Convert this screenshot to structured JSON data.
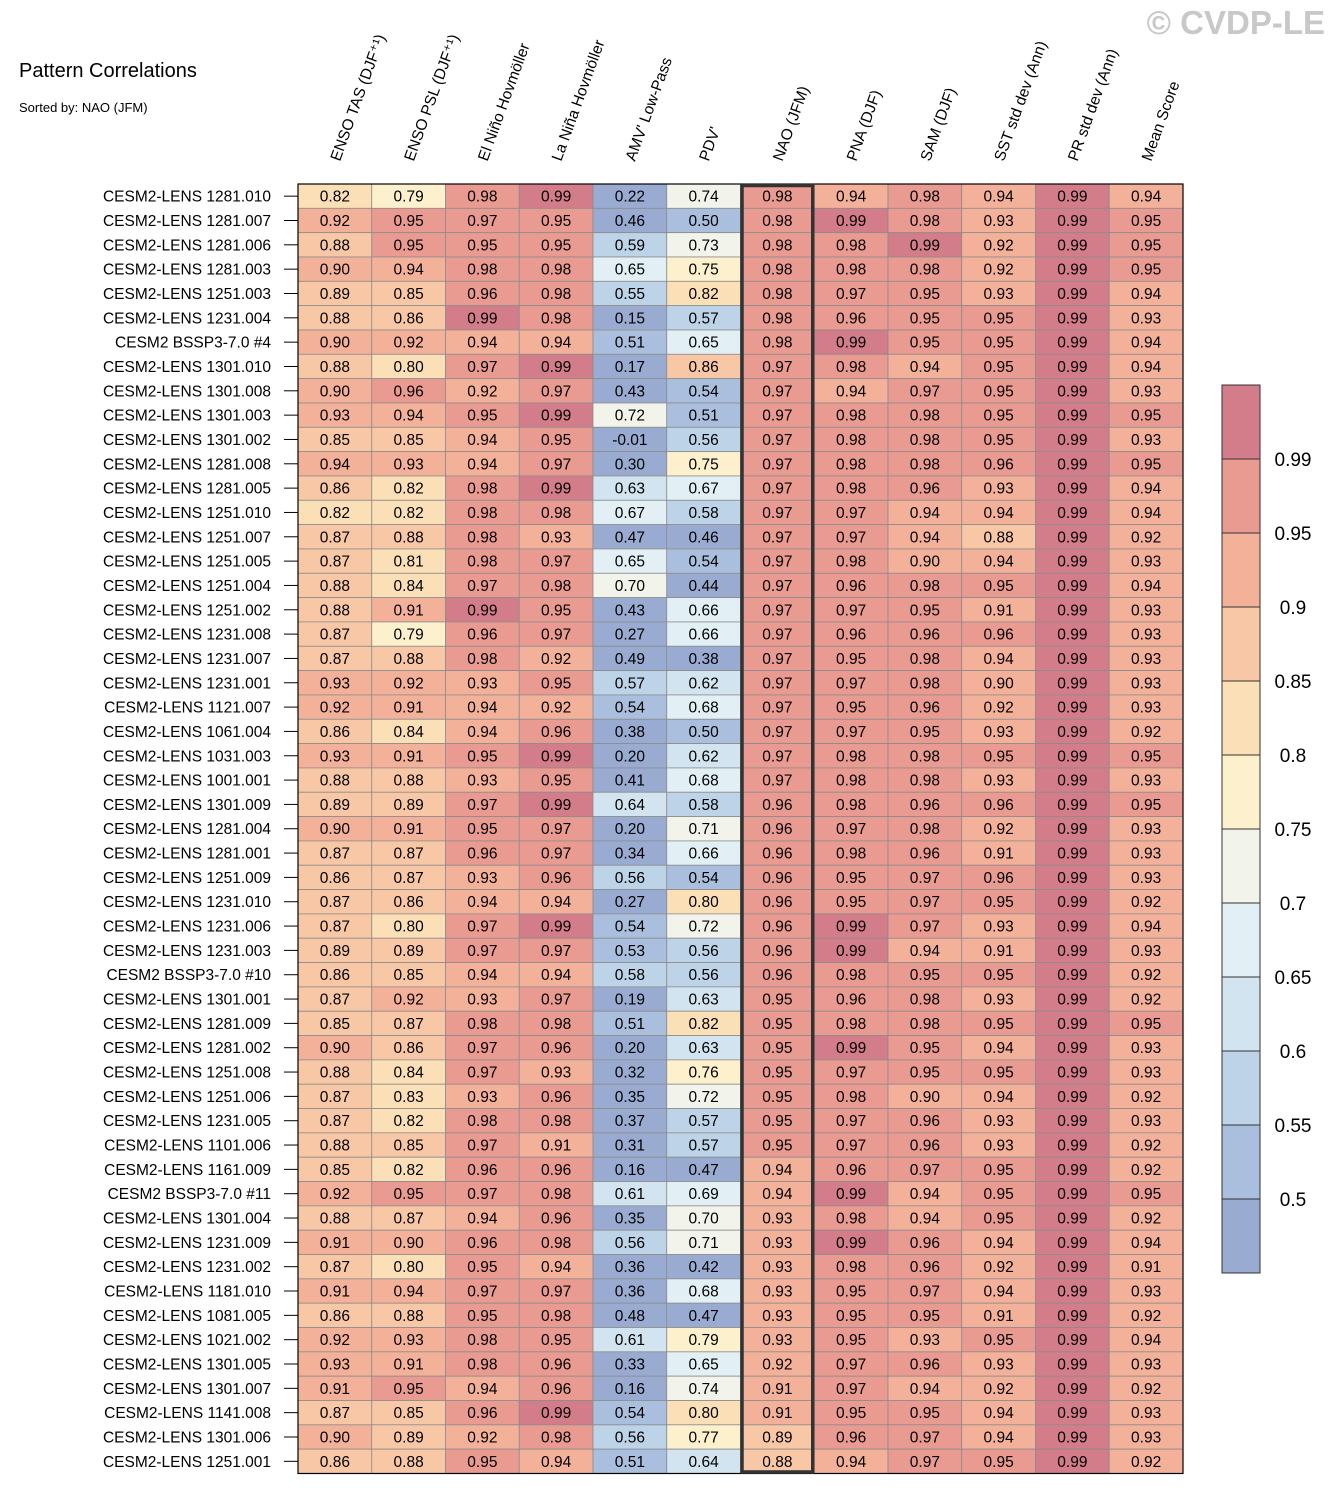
{
  "watermark": "© CVDP-LE",
  "chart_data": {
    "type": "heatmap",
    "title": "Pattern Correlations",
    "subtitle": "Sorted by: NAO (JFM)",
    "highlight_column": "NAO (JFM)",
    "columns": [
      "ENSO TAS (DJF⁺¹)",
      "ENSO PSL (DJF⁺¹)",
      "El Niño Hovmöller",
      "La Niña Hovmöller",
      "AMV' Low-Pass",
      "PDV'",
      "NAO (JFM)",
      "PNA (DJF)",
      "SAM (DJF)",
      "SST std dev (Ann)",
      "PR std dev (Ann)",
      "Mean Score"
    ],
    "rows": [
      {
        "label": "CESM2-LENS 1281.010",
        "values": [
          "0.82",
          "0.79",
          "0.98",
          "0.99",
          "0.22",
          "0.74",
          "0.98",
          "0.94",
          "0.98",
          "0.94",
          "0.99",
          "0.94"
        ]
      },
      {
        "label": "CESM2-LENS 1281.007",
        "values": [
          "0.92",
          "0.95",
          "0.97",
          "0.95",
          "0.46",
          "0.50",
          "0.98",
          "0.99",
          "0.98",
          "0.93",
          "0.99",
          "0.95"
        ]
      },
      {
        "label": "CESM2-LENS 1281.006",
        "values": [
          "0.88",
          "0.95",
          "0.95",
          "0.95",
          "0.59",
          "0.73",
          "0.98",
          "0.98",
          "0.99",
          "0.92",
          "0.99",
          "0.95"
        ]
      },
      {
        "label": "CESM2-LENS 1281.003",
        "values": [
          "0.90",
          "0.94",
          "0.98",
          "0.98",
          "0.65",
          "0.75",
          "0.98",
          "0.98",
          "0.98",
          "0.92",
          "0.99",
          "0.95"
        ]
      },
      {
        "label": "CESM2-LENS 1251.003",
        "values": [
          "0.89",
          "0.85",
          "0.96",
          "0.98",
          "0.55",
          "0.82",
          "0.98",
          "0.97",
          "0.95",
          "0.93",
          "0.99",
          "0.94"
        ]
      },
      {
        "label": "CESM2-LENS 1231.004",
        "values": [
          "0.88",
          "0.86",
          "0.99",
          "0.98",
          "0.15",
          "0.57",
          "0.98",
          "0.96",
          "0.95",
          "0.95",
          "0.99",
          "0.93"
        ]
      },
      {
        "label": "CESM2 BSSP3-7.0 #4",
        "values": [
          "0.90",
          "0.92",
          "0.94",
          "0.94",
          "0.51",
          "0.65",
          "0.98",
          "0.99",
          "0.95",
          "0.95",
          "0.99",
          "0.94"
        ]
      },
      {
        "label": "CESM2-LENS 1301.010",
        "values": [
          "0.88",
          "0.80",
          "0.97",
          "0.99",
          "0.17",
          "0.86",
          "0.97",
          "0.98",
          "0.94",
          "0.95",
          "0.99",
          "0.94"
        ]
      },
      {
        "label": "CESM2-LENS 1301.008",
        "values": [
          "0.90",
          "0.96",
          "0.92",
          "0.97",
          "0.43",
          "0.54",
          "0.97",
          "0.94",
          "0.97",
          "0.95",
          "0.99",
          "0.93"
        ]
      },
      {
        "label": "CESM2-LENS 1301.003",
        "values": [
          "0.93",
          "0.94",
          "0.95",
          "0.99",
          "0.72",
          "0.51",
          "0.97",
          "0.98",
          "0.98",
          "0.95",
          "0.99",
          "0.95"
        ]
      },
      {
        "label": "CESM2-LENS 1301.002",
        "values": [
          "0.85",
          "0.85",
          "0.94",
          "0.95",
          "-0.01",
          "0.56",
          "0.97",
          "0.98",
          "0.98",
          "0.95",
          "0.99",
          "0.93"
        ]
      },
      {
        "label": "CESM2-LENS 1281.008",
        "values": [
          "0.94",
          "0.93",
          "0.94",
          "0.97",
          "0.30",
          "0.75",
          "0.97",
          "0.98",
          "0.98",
          "0.96",
          "0.99",
          "0.95"
        ]
      },
      {
        "label": "CESM2-LENS 1281.005",
        "values": [
          "0.86",
          "0.82",
          "0.98",
          "0.99",
          "0.63",
          "0.67",
          "0.97",
          "0.98",
          "0.96",
          "0.93",
          "0.99",
          "0.94"
        ]
      },
      {
        "label": "CESM2-LENS 1251.010",
        "values": [
          "0.82",
          "0.82",
          "0.98",
          "0.98",
          "0.67",
          "0.58",
          "0.97",
          "0.97",
          "0.94",
          "0.94",
          "0.99",
          "0.94"
        ]
      },
      {
        "label": "CESM2-LENS 1251.007",
        "values": [
          "0.87",
          "0.88",
          "0.98",
          "0.93",
          "0.47",
          "0.46",
          "0.97",
          "0.97",
          "0.94",
          "0.88",
          "0.99",
          "0.92"
        ]
      },
      {
        "label": "CESM2-LENS 1251.005",
        "values": [
          "0.87",
          "0.81",
          "0.98",
          "0.97",
          "0.65",
          "0.54",
          "0.97",
          "0.98",
          "0.90",
          "0.94",
          "0.99",
          "0.93"
        ]
      },
      {
        "label": "CESM2-LENS 1251.004",
        "values": [
          "0.88",
          "0.84",
          "0.97",
          "0.98",
          "0.70",
          "0.44",
          "0.97",
          "0.96",
          "0.98",
          "0.95",
          "0.99",
          "0.94"
        ]
      },
      {
        "label": "CESM2-LENS 1251.002",
        "values": [
          "0.88",
          "0.91",
          "0.99",
          "0.95",
          "0.43",
          "0.66",
          "0.97",
          "0.97",
          "0.95",
          "0.91",
          "0.99",
          "0.93"
        ]
      },
      {
        "label": "CESM2-LENS 1231.008",
        "values": [
          "0.87",
          "0.79",
          "0.96",
          "0.97",
          "0.27",
          "0.66",
          "0.97",
          "0.96",
          "0.96",
          "0.96",
          "0.99",
          "0.93"
        ]
      },
      {
        "label": "CESM2-LENS 1231.007",
        "values": [
          "0.87",
          "0.88",
          "0.98",
          "0.92",
          "0.49",
          "0.38",
          "0.97",
          "0.95",
          "0.98",
          "0.94",
          "0.99",
          "0.93"
        ]
      },
      {
        "label": "CESM2-LENS 1231.001",
        "values": [
          "0.93",
          "0.92",
          "0.93",
          "0.95",
          "0.57",
          "0.62",
          "0.97",
          "0.97",
          "0.98",
          "0.90",
          "0.99",
          "0.93"
        ]
      },
      {
        "label": "CESM2-LENS 1121.007",
        "values": [
          "0.92",
          "0.91",
          "0.94",
          "0.92",
          "0.54",
          "0.68",
          "0.97",
          "0.95",
          "0.96",
          "0.92",
          "0.99",
          "0.93"
        ]
      },
      {
        "label": "CESM2-LENS 1061.004",
        "values": [
          "0.86",
          "0.84",
          "0.94",
          "0.96",
          "0.38",
          "0.50",
          "0.97",
          "0.97",
          "0.95",
          "0.93",
          "0.99",
          "0.92"
        ]
      },
      {
        "label": "CESM2-LENS 1031.003",
        "values": [
          "0.93",
          "0.91",
          "0.95",
          "0.99",
          "0.20",
          "0.62",
          "0.97",
          "0.98",
          "0.98",
          "0.95",
          "0.99",
          "0.95"
        ]
      },
      {
        "label": "CESM2-LENS 1001.001",
        "values": [
          "0.88",
          "0.88",
          "0.93",
          "0.95",
          "0.41",
          "0.68",
          "0.97",
          "0.98",
          "0.98",
          "0.93",
          "0.99",
          "0.93"
        ]
      },
      {
        "label": "CESM2-LENS 1301.009",
        "values": [
          "0.89",
          "0.89",
          "0.97",
          "0.99",
          "0.64",
          "0.58",
          "0.96",
          "0.98",
          "0.96",
          "0.96",
          "0.99",
          "0.95"
        ]
      },
      {
        "label": "CESM2-LENS 1281.004",
        "values": [
          "0.90",
          "0.91",
          "0.95",
          "0.97",
          "0.20",
          "0.71",
          "0.96",
          "0.97",
          "0.98",
          "0.92",
          "0.99",
          "0.93"
        ]
      },
      {
        "label": "CESM2-LENS 1281.001",
        "values": [
          "0.87",
          "0.87",
          "0.96",
          "0.97",
          "0.34",
          "0.66",
          "0.96",
          "0.98",
          "0.96",
          "0.91",
          "0.99",
          "0.93"
        ]
      },
      {
        "label": "CESM2-LENS 1251.009",
        "values": [
          "0.86",
          "0.87",
          "0.93",
          "0.96",
          "0.56",
          "0.54",
          "0.96",
          "0.95",
          "0.97",
          "0.96",
          "0.99",
          "0.93"
        ]
      },
      {
        "label": "CESM2-LENS 1231.010",
        "values": [
          "0.87",
          "0.86",
          "0.94",
          "0.94",
          "0.27",
          "0.80",
          "0.96",
          "0.95",
          "0.97",
          "0.95",
          "0.99",
          "0.92"
        ]
      },
      {
        "label": "CESM2-LENS 1231.006",
        "values": [
          "0.87",
          "0.80",
          "0.97",
          "0.99",
          "0.54",
          "0.72",
          "0.96",
          "0.99",
          "0.97",
          "0.93",
          "0.99",
          "0.94"
        ]
      },
      {
        "label": "CESM2-LENS 1231.003",
        "values": [
          "0.89",
          "0.89",
          "0.97",
          "0.97",
          "0.53",
          "0.56",
          "0.96",
          "0.99",
          "0.94",
          "0.91",
          "0.99",
          "0.93"
        ]
      },
      {
        "label": "CESM2 BSSP3-7.0 #10",
        "values": [
          "0.86",
          "0.85",
          "0.94",
          "0.94",
          "0.58",
          "0.56",
          "0.96",
          "0.98",
          "0.95",
          "0.95",
          "0.99",
          "0.92"
        ]
      },
      {
        "label": "CESM2-LENS 1301.001",
        "values": [
          "0.87",
          "0.92",
          "0.93",
          "0.97",
          "0.19",
          "0.63",
          "0.95",
          "0.96",
          "0.98",
          "0.93",
          "0.99",
          "0.92"
        ]
      },
      {
        "label": "CESM2-LENS 1281.009",
        "values": [
          "0.85",
          "0.87",
          "0.98",
          "0.98",
          "0.51",
          "0.82",
          "0.95",
          "0.98",
          "0.98",
          "0.95",
          "0.99",
          "0.95"
        ]
      },
      {
        "label": "CESM2-LENS 1281.002",
        "values": [
          "0.90",
          "0.86",
          "0.97",
          "0.96",
          "0.20",
          "0.63",
          "0.95",
          "0.99",
          "0.95",
          "0.94",
          "0.99",
          "0.93"
        ]
      },
      {
        "label": "CESM2-LENS 1251.008",
        "values": [
          "0.88",
          "0.84",
          "0.97",
          "0.93",
          "0.32",
          "0.76",
          "0.95",
          "0.97",
          "0.95",
          "0.95",
          "0.99",
          "0.93"
        ]
      },
      {
        "label": "CESM2-LENS 1251.006",
        "values": [
          "0.87",
          "0.83",
          "0.93",
          "0.96",
          "0.35",
          "0.72",
          "0.95",
          "0.98",
          "0.90",
          "0.94",
          "0.99",
          "0.92"
        ]
      },
      {
        "label": "CESM2-LENS 1231.005",
        "values": [
          "0.87",
          "0.82",
          "0.98",
          "0.98",
          "0.37",
          "0.57",
          "0.95",
          "0.97",
          "0.96",
          "0.93",
          "0.99",
          "0.93"
        ]
      },
      {
        "label": "CESM2-LENS 1101.006",
        "values": [
          "0.88",
          "0.85",
          "0.97",
          "0.91",
          "0.31",
          "0.57",
          "0.95",
          "0.97",
          "0.96",
          "0.93",
          "0.99",
          "0.92"
        ]
      },
      {
        "label": "CESM2-LENS 1161.009",
        "values": [
          "0.85",
          "0.82",
          "0.96",
          "0.96",
          "0.16",
          "0.47",
          "0.94",
          "0.96",
          "0.97",
          "0.95",
          "0.99",
          "0.92"
        ]
      },
      {
        "label": "CESM2 BSSP3-7.0 #11",
        "values": [
          "0.92",
          "0.95",
          "0.97",
          "0.98",
          "0.61",
          "0.69",
          "0.94",
          "0.99",
          "0.94",
          "0.95",
          "0.99",
          "0.95"
        ]
      },
      {
        "label": "CESM2-LENS 1301.004",
        "values": [
          "0.88",
          "0.87",
          "0.94",
          "0.96",
          "0.35",
          "0.70",
          "0.93",
          "0.98",
          "0.94",
          "0.95",
          "0.99",
          "0.92"
        ]
      },
      {
        "label": "CESM2-LENS 1231.009",
        "values": [
          "0.91",
          "0.90",
          "0.96",
          "0.98",
          "0.56",
          "0.71",
          "0.93",
          "0.99",
          "0.96",
          "0.94",
          "0.99",
          "0.94"
        ]
      },
      {
        "label": "CESM2-LENS 1231.002",
        "values": [
          "0.87",
          "0.80",
          "0.95",
          "0.94",
          "0.36",
          "0.42",
          "0.93",
          "0.98",
          "0.96",
          "0.92",
          "0.99",
          "0.91"
        ]
      },
      {
        "label": "CESM2-LENS 1181.010",
        "values": [
          "0.91",
          "0.94",
          "0.97",
          "0.97",
          "0.36",
          "0.68",
          "0.93",
          "0.95",
          "0.97",
          "0.94",
          "0.99",
          "0.93"
        ]
      },
      {
        "label": "CESM2-LENS 1081.005",
        "values": [
          "0.86",
          "0.88",
          "0.95",
          "0.98",
          "0.48",
          "0.47",
          "0.93",
          "0.95",
          "0.95",
          "0.91",
          "0.99",
          "0.92"
        ]
      },
      {
        "label": "CESM2-LENS 1021.002",
        "values": [
          "0.92",
          "0.93",
          "0.98",
          "0.95",
          "0.61",
          "0.79",
          "0.93",
          "0.95",
          "0.93",
          "0.95",
          "0.99",
          "0.94"
        ]
      },
      {
        "label": "CESM2-LENS 1301.005",
        "values": [
          "0.93",
          "0.91",
          "0.98",
          "0.96",
          "0.33",
          "0.65",
          "0.92",
          "0.97",
          "0.96",
          "0.93",
          "0.99",
          "0.93"
        ]
      },
      {
        "label": "CESM2-LENS 1301.007",
        "values": [
          "0.91",
          "0.95",
          "0.94",
          "0.96",
          "0.16",
          "0.74",
          "0.91",
          "0.97",
          "0.94",
          "0.92",
          "0.99",
          "0.92"
        ]
      },
      {
        "label": "CESM2-LENS 1141.008",
        "values": [
          "0.87",
          "0.85",
          "0.96",
          "0.99",
          "0.54",
          "0.80",
          "0.91",
          "0.95",
          "0.95",
          "0.94",
          "0.99",
          "0.93"
        ]
      },
      {
        "label": "CESM2-LENS 1301.006",
        "values": [
          "0.90",
          "0.89",
          "0.92",
          "0.98",
          "0.56",
          "0.77",
          "0.89",
          "0.96",
          "0.97",
          "0.94",
          "0.99",
          "0.93"
        ]
      },
      {
        "label": "CESM2-LENS 1251.001",
        "values": [
          "0.86",
          "0.88",
          "0.95",
          "0.94",
          "0.51",
          "0.64",
          "0.88",
          "0.94",
          "0.97",
          "0.95",
          "0.99",
          "0.92"
        ]
      }
    ],
    "colorbar": {
      "levels": [
        "0.5",
        "0.55",
        "0.6",
        "0.65",
        "0.7",
        "0.75",
        "0.8",
        "0.85",
        "0.9",
        "0.95",
        "0.99"
      ],
      "colors": [
        "#9aabd2",
        "#aabfde",
        "#bdd3e8",
        "#d1e4ef",
        "#e2f0f6",
        "#f2f3ea",
        "#fdf0cc",
        "#fbdfb7",
        "#f8c8a6",
        "#f4b19a",
        "#e99a91",
        "#d37c8a"
      ]
    }
  }
}
